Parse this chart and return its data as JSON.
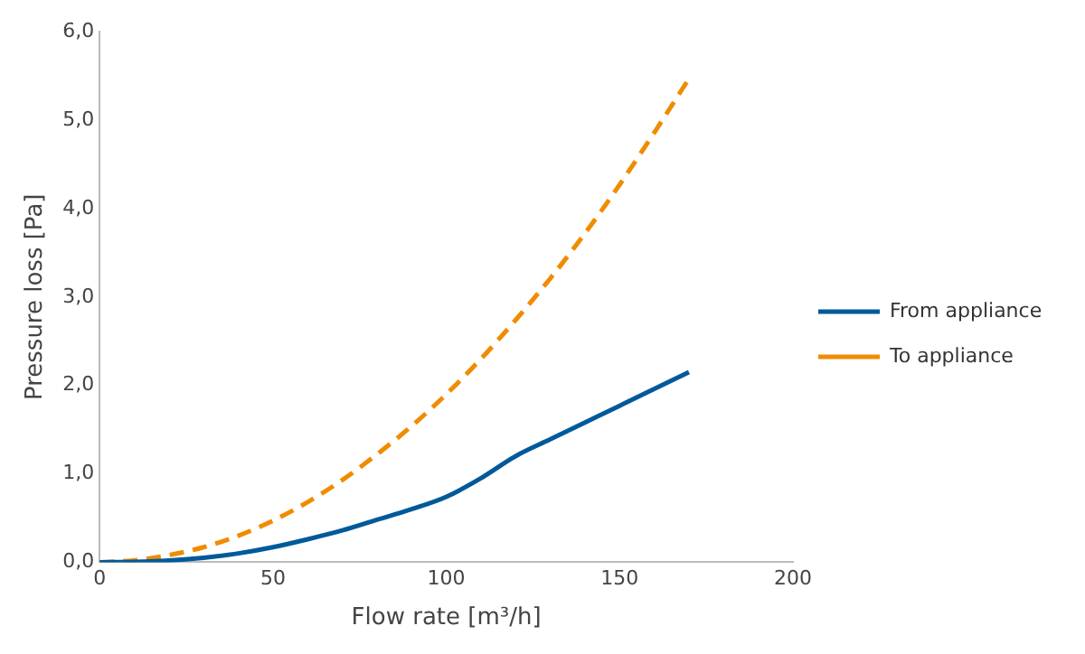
{
  "chart_data": {
    "type": "line",
    "xlabel": "Flow rate [m³/h]",
    "ylabel": "Pressure loss [Pa]",
    "x": [
      0,
      10,
      20,
      30,
      40,
      50,
      60,
      70,
      80,
      90,
      100,
      110,
      120,
      130,
      140,
      150,
      160,
      170
    ],
    "series": [
      {
        "name": "From appliance",
        "color": "#005a9a",
        "line_style": "solid",
        "values": [
          0,
          0.005,
          0.02,
          0.05,
          0.1,
          0.17,
          0.26,
          0.36,
          0.48,
          0.6,
          0.74,
          0.95,
          1.2,
          1.39,
          1.58,
          1.77,
          1.96,
          2.15
        ]
      },
      {
        "name": "To appliance",
        "color": "#f08c00",
        "line_style": "dashed",
        "values": [
          0,
          0.02,
          0.08,
          0.17,
          0.3,
          0.47,
          0.68,
          0.93,
          1.22,
          1.54,
          1.9,
          2.3,
          2.74,
          3.21,
          3.72,
          4.27,
          4.86,
          5.47
        ]
      }
    ],
    "xlim": [
      0,
      200
    ],
    "xticks": [
      0,
      50,
      100,
      150,
      200
    ],
    "ylim": [
      0,
      6
    ],
    "yticks": [
      {
        "value": 0,
        "label": "0,0"
      },
      {
        "value": 1,
        "label": "1,0"
      },
      {
        "value": 2,
        "label": "2,0"
      },
      {
        "value": 3,
        "label": "3,0"
      },
      {
        "value": 4,
        "label": "4,0"
      },
      {
        "value": 5,
        "label": "5,0"
      },
      {
        "value": 6,
        "label": "6,0"
      }
    ],
    "grid": false,
    "legend": "right",
    "marker": "none"
  }
}
